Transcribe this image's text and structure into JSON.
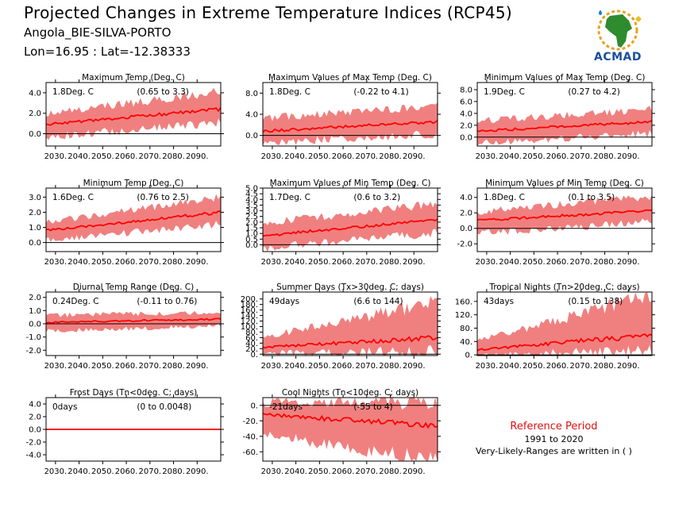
{
  "header": {
    "title": "Projected Changes in Extreme Temperature Indices (RCP45)",
    "station": "Angola_BIE-SILVA-PORTO",
    "coords": "Lon=16.95 : Lat=-12.38333"
  },
  "logo": {
    "text": "ACMAD"
  },
  "reference": {
    "title": "Reference Period",
    "years": "1991 to 2020",
    "note": "Very-Likely-Ranges are written in ( )"
  },
  "colors": {
    "band": "#f08080",
    "line": "#ff0000",
    "zero": "#000000"
  },
  "chart_data": [
    {
      "type": "area",
      "title": "Maximum Temp (Deg. C)",
      "mean_label": "1.8Deg. C",
      "range_label": "(0.65 to 3.3)",
      "x_ticks": [
        "2030.",
        "2040.",
        "2050.",
        "2060.",
        "2070.",
        "2080.",
        "2090."
      ],
      "y_ticks": [
        "0.0",
        "2.0",
        "4.0"
      ],
      "y_tick_values": [
        0,
        2,
        4
      ],
      "ylim": [
        -1.2,
        5.0
      ],
      "series": [
        {
          "x": [
            2026,
            2100
          ],
          "mean": [
            0.9,
            2.4
          ],
          "low": [
            -0.2,
            1.2
          ],
          "high": [
            1.8,
            4.0
          ]
        }
      ]
    },
    {
      "type": "area",
      "title": "Maximum Values of Max Temp (Deg. C)",
      "mean_label": "1.8Deg. C",
      "range_label": "(-0.22 to 4.1)",
      "x_ticks": [
        "2030.",
        "2040.",
        "2050.",
        "2060.",
        "2070.",
        "2080.",
        "2090."
      ],
      "y_ticks": [
        "0.0",
        "4.0",
        "8.0"
      ],
      "y_tick_values": [
        0,
        4,
        8
      ],
      "ylim": [
        -2.0,
        10.0
      ],
      "series": [
        {
          "x": [
            2026,
            2100
          ],
          "mean": [
            0.8,
            2.6
          ],
          "low": [
            -1.2,
            0.5
          ],
          "high": [
            3.0,
            5.5
          ]
        }
      ]
    },
    {
      "type": "area",
      "title": "Minimum Values of Max Temp (Deg. C)",
      "mean_label": "1.9Deg. C",
      "range_label": "(0.27 to 4.2)",
      "x_ticks": [
        "2030.",
        "2040.",
        "2050.",
        "2060.",
        "2070.",
        "2080.",
        "2090."
      ],
      "y_ticks": [
        "0.0",
        "2.0",
        "4.0",
        "6.0",
        "8.0"
      ],
      "y_tick_values": [
        0,
        2,
        4,
        6,
        8
      ],
      "ylim": [
        -1.5,
        9.2
      ],
      "series": [
        {
          "x": [
            2026,
            2100
          ],
          "mean": [
            1.0,
            2.6
          ],
          "low": [
            -0.8,
            0.8
          ],
          "high": [
            2.5,
            4.5
          ]
        }
      ]
    },
    {
      "type": "area",
      "title": "Minimum Temp (Deg. C)",
      "mean_label": "1.6Deg. C",
      "range_label": "(0.76 to 2.5)",
      "x_ticks": [
        "2030.",
        "2040.",
        "2050.",
        "2060.",
        "2070.",
        "2080.",
        "2090."
      ],
      "y_ticks": [
        "0.0",
        "1.0",
        "2.0",
        "3.0"
      ],
      "y_tick_values": [
        0,
        1,
        2,
        3
      ],
      "ylim": [
        -0.6,
        3.6
      ],
      "series": [
        {
          "x": [
            2026,
            2100
          ],
          "mean": [
            0.8,
            2.0
          ],
          "low": [
            0.2,
            1.3
          ],
          "high": [
            1.3,
            2.9
          ]
        }
      ]
    },
    {
      "type": "area",
      "title": "Maximum Values of Min Temp (Deg. C)",
      "mean_label": "1.7Deg. C",
      "range_label": "(0.6 to 3.2)",
      "x_ticks": [
        "2030.",
        "2040.",
        "2050.",
        "2060.",
        "2070.",
        "2080.",
        "2090."
      ],
      "y_ticks": [
        "0.0",
        "0.5",
        "1.0",
        "1.5",
        "2.0",
        "2.5",
        "3.0",
        "3.5",
        "4.0",
        "4.5",
        "5.0"
      ],
      "y_tick_values": [
        0,
        0.5,
        1,
        1.5,
        2,
        2.5,
        3,
        3.5,
        4,
        4.5,
        5
      ],
      "ylim": [
        -0.6,
        5.0
      ],
      "series": [
        {
          "x": [
            2026,
            2100
          ],
          "mean": [
            0.8,
            2.2
          ],
          "low": [
            -0.2,
            1.2
          ],
          "high": [
            1.8,
            3.5
          ]
        }
      ]
    },
    {
      "type": "area",
      "title": "Minimum Values of Min Temp (Deg. C)",
      "mean_label": "1.8Deg. C",
      "range_label": "(0.1 to 3.5)",
      "x_ticks": [
        "2030.",
        "2040.",
        "2050.",
        "2060.",
        "2070.",
        "2080.",
        "2090."
      ],
      "y_ticks": [
        "-2.0",
        "0.0",
        "2.0",
        "4.0"
      ],
      "y_tick_values": [
        -2,
        0,
        2,
        4
      ],
      "ylim": [
        -3.0,
        5.2
      ],
      "series": [
        {
          "x": [
            2026,
            2100
          ],
          "mean": [
            1.0,
            2.3
          ],
          "low": [
            -0.5,
            1.0
          ],
          "high": [
            2.0,
            4.0
          ]
        }
      ]
    },
    {
      "type": "area",
      "title": "Diurnal Temp Range (Deg. C)",
      "mean_label": "0.24Deg. C",
      "range_label": "(-0.11 to 0.76)",
      "x_ticks": [
        "2030.",
        "2040.",
        "2050.",
        "2060.",
        "2070.",
        "2080.",
        "2090."
      ],
      "y_ticks": [
        "-2.0",
        "-1.0",
        "0.0",
        "1.0",
        "2.0"
      ],
      "y_tick_values": [
        -2,
        -1,
        0,
        1,
        2
      ],
      "ylim": [
        -2.4,
        2.4
      ],
      "series": [
        {
          "x": [
            2026,
            2100
          ],
          "mean": [
            0.1,
            0.35
          ],
          "low": [
            -0.5,
            -0.1
          ],
          "high": [
            0.6,
            0.8
          ]
        }
      ]
    },
    {
      "type": "area",
      "title": "Summer Days (Tx>30deg. C; days)",
      "mean_label": "49days",
      "range_label": "(6.6 to 144)",
      "x_ticks": [
        "2030.",
        "2040.",
        "2050.",
        "2060.",
        "2070.",
        "2080.",
        "2090."
      ],
      "y_ticks": [
        "0.",
        "20.",
        "40.",
        "60.",
        "80.",
        "100.",
        "120.",
        "140.",
        "160.",
        "180.",
        "200."
      ],
      "y_tick_values": [
        0,
        20,
        40,
        60,
        80,
        100,
        120,
        140,
        160,
        180,
        200
      ],
      "ylim": [
        -5,
        225
      ],
      "series": [
        {
          "x": [
            2026,
            2100
          ],
          "mean": [
            25,
            60
          ],
          "low": [
            5,
            15
          ],
          "high": [
            60,
            180
          ]
        }
      ]
    },
    {
      "type": "area",
      "title": "Tropical Nights (Tn>20deg. C; days)",
      "mean_label": "43days",
      "range_label": "(0.15 to 138)",
      "x_ticks": [
        "2030.",
        "2040.",
        "2050.",
        "2060.",
        "2070.",
        "2080.",
        "2090."
      ],
      "y_ticks": [
        "0.",
        "40.",
        "80.",
        "120.",
        "160."
      ],
      "y_tick_values": [
        0,
        40,
        80,
        120,
        160
      ],
      "ylim": [
        -2,
        188
      ],
      "series": [
        {
          "x": [
            2026,
            2100
          ],
          "mean": [
            15,
            60
          ],
          "low": [
            0,
            15
          ],
          "high": [
            40,
            170
          ]
        }
      ]
    },
    {
      "type": "area",
      "title": "Frost Days (Tn<0deg. C; days)",
      "mean_label": "0days",
      "range_label": "(0 to 0.0048)",
      "x_ticks": [
        "2030.",
        "2040.",
        "2050.",
        "2060.",
        "2070.",
        "2080.",
        "2090."
      ],
      "y_ticks": [
        "-4.0",
        "-2.0",
        "0.0",
        "2.0",
        "4.0"
      ],
      "y_tick_values": [
        -4,
        -2,
        0,
        2,
        4
      ],
      "ylim": [
        -5.0,
        5.0
      ],
      "series": [
        {
          "x": [
            2026,
            2100
          ],
          "mean": [
            0,
            0
          ],
          "low": [
            0,
            0
          ],
          "high": [
            0,
            0
          ]
        }
      ]
    },
    {
      "type": "area",
      "title": "Cool Nights (Tn<10deg. C; days)",
      "mean_label": "-21days",
      "range_label": "(-55 to 4)",
      "x_ticks": [
        "2030.",
        "2040.",
        "2050.",
        "2060.",
        "2070.",
        "2080.",
        "2090."
      ],
      "y_ticks": [
        "-60.",
        "-40.",
        "-20.",
        "0."
      ],
      "y_tick_values": [
        -60,
        -40,
        -20,
        0
      ],
      "ylim": [
        -72,
        10
      ],
      "series": [
        {
          "x": [
            2026,
            2100
          ],
          "mean": [
            -12,
            -26
          ],
          "low": [
            -35,
            -68
          ],
          "high": [
            2,
            2
          ]
        }
      ]
    }
  ]
}
